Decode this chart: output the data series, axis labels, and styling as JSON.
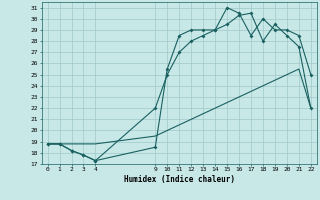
{
  "xlabel": "Humidex (Indice chaleur)",
  "xlim": [
    -0.5,
    22.5
  ],
  "ylim": [
    17,
    31.5
  ],
  "yticks": [
    17,
    18,
    19,
    20,
    21,
    22,
    23,
    24,
    25,
    26,
    27,
    28,
    29,
    30,
    31
  ],
  "xticks": [
    0,
    1,
    2,
    3,
    4,
    9,
    10,
    11,
    12,
    13,
    14,
    15,
    16,
    17,
    18,
    19,
    20,
    21,
    22
  ],
  "bg_color": "#c8e8e8",
  "grid_color": "#a0c8c8",
  "line_color": "#1a6060",
  "line1_x": [
    0,
    1,
    2,
    3,
    4,
    9,
    10,
    11,
    12,
    13,
    14,
    15,
    16,
    17,
    18,
    19,
    20,
    21,
    22
  ],
  "line1_y": [
    18.8,
    18.8,
    18.2,
    17.8,
    17.3,
    18.5,
    25.5,
    28.5,
    29.0,
    29.0,
    29.0,
    31.0,
    30.5,
    28.5,
    30.0,
    29.0,
    29.0,
    28.5,
    25.0
  ],
  "line2_x": [
    0,
    1,
    2,
    3,
    4,
    9,
    10,
    11,
    12,
    13,
    14,
    15,
    16,
    17,
    18,
    19,
    20,
    21,
    22
  ],
  "line2_y": [
    18.8,
    18.8,
    18.2,
    17.8,
    17.3,
    22.0,
    25.0,
    27.0,
    28.0,
    28.5,
    29.0,
    29.5,
    30.3,
    30.5,
    28.0,
    29.5,
    28.5,
    27.5,
    22.0
  ],
  "line3_x": [
    0,
    1,
    2,
    3,
    4,
    9,
    10,
    11,
    12,
    13,
    14,
    15,
    16,
    17,
    18,
    19,
    20,
    21,
    22
  ],
  "line3_y": [
    18.8,
    18.8,
    18.8,
    18.8,
    18.8,
    19.5,
    20.0,
    20.5,
    21.0,
    21.5,
    22.0,
    22.5,
    23.0,
    23.5,
    24.0,
    24.5,
    25.0,
    25.5,
    22.0
  ],
  "label_fontsize": 4.5,
  "xlabel_fontsize": 5.5
}
